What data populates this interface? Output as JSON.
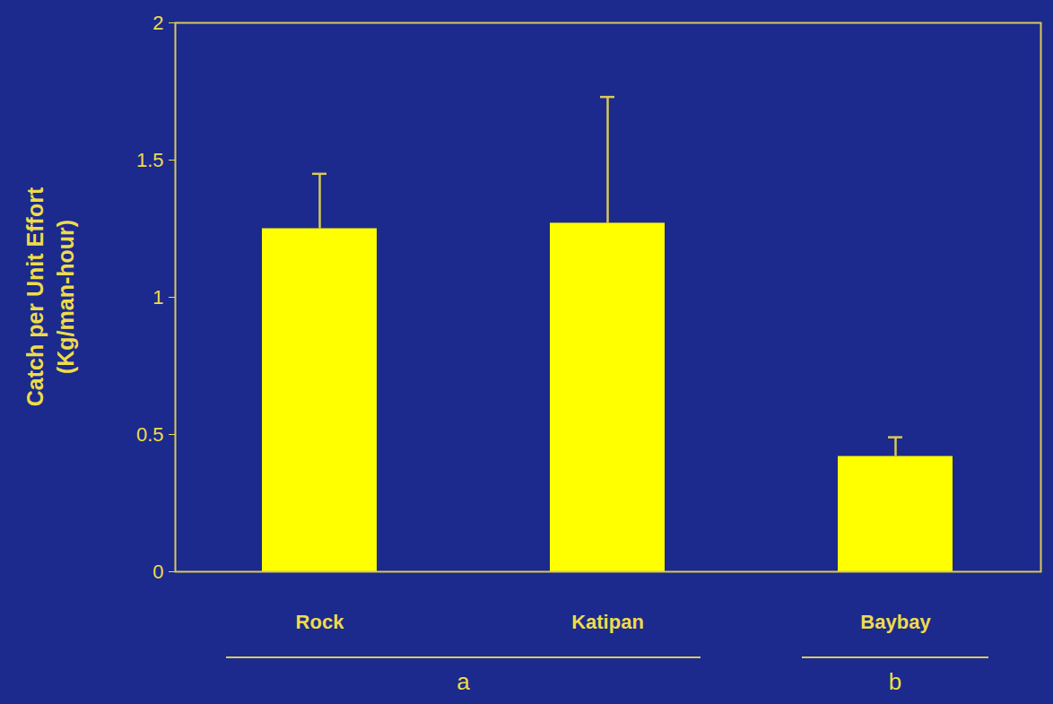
{
  "chart_data": {
    "type": "bar",
    "categories": [
      "Rock",
      "Katipan",
      "Baybay"
    ],
    "values": [
      1.25,
      1.27,
      0.42
    ],
    "errors": [
      0.2,
      0.46,
      0.07
    ],
    "color": "#ffff00",
    "ylabel": "Catch per Unit Effort (Kg/man-hour)",
    "ylim": [
      0,
      2
    ],
    "yticks": [
      0,
      0.5,
      1,
      1.5,
      2
    ],
    "groups": [
      {
        "label": "a",
        "categories": [
          "Rock",
          "Katipan"
        ]
      },
      {
        "label": "b",
        "categories": [
          "Baybay"
        ]
      }
    ]
  }
}
